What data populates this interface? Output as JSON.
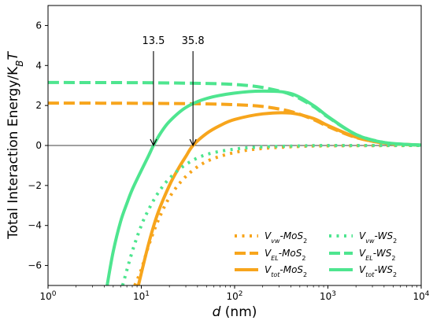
{
  "chart_data": {
    "type": "line",
    "xscale": "log",
    "xlim": [
      1,
      10000
    ],
    "ylim": [
      -7,
      7
    ],
    "xlabel_parts": [
      "d",
      " (nm)"
    ],
    "ylabel_parts": [
      "Total Interaction Energy/K",
      "B",
      "T"
    ],
    "x_ticks": [
      {
        "base": "10",
        "exp": "0",
        "value": 1
      },
      {
        "base": "10",
        "exp": "1",
        "value": 10
      },
      {
        "base": "10",
        "exp": "2",
        "value": 100
      },
      {
        "base": "10",
        "exp": "3",
        "value": 1000
      },
      {
        "base": "10",
        "exp": "4",
        "value": 10000
      }
    ],
    "y_ticks": [
      -6,
      -4,
      -2,
      0,
      2,
      4,
      6
    ],
    "y_tick_labels": [
      "−6",
      "−4",
      "−2",
      "0",
      "2",
      "4",
      "6"
    ],
    "zero_line": 0,
    "annotations": [
      {
        "text": "13.5",
        "x": 13.5,
        "y": 0
      },
      {
        "text": "35.8",
        "x": 35.8,
        "y": 0
      }
    ],
    "legend_position": "lower-right",
    "colors": {
      "MoS2": "#f7a51c",
      "WS2": "#4ee58f"
    },
    "series": [
      {
        "name_parts": [
          "V",
          "vw",
          "-MoS",
          "2"
        ],
        "material": "MoS2",
        "style": "dotted",
        "x": [
          8.5,
          10,
          12,
          15,
          20,
          30,
          50,
          100,
          200,
          500,
          1000,
          10000
        ],
        "y": [
          -7,
          -6.2,
          -5.0,
          -3.8,
          -2.6,
          -1.55,
          -0.8,
          -0.35,
          -0.15,
          -0.05,
          -0.02,
          0
        ]
      },
      {
        "name_parts": [
          "V",
          "EL",
          "-MoS",
          "2"
        ],
        "material": "MoS2",
        "style": "dashed",
        "x": [
          1,
          10,
          50,
          100,
          200,
          400,
          700,
          1000,
          2000,
          4000,
          7000,
          10000
        ],
        "y": [
          2.12,
          2.11,
          2.08,
          2.04,
          1.95,
          1.7,
          1.3,
          0.95,
          0.4,
          0.12,
          0.05,
          0.02
        ]
      },
      {
        "name_parts": [
          "V",
          "tot",
          "-MoS",
          "2"
        ],
        "material": "MoS2",
        "style": "solid",
        "x": [
          9.3,
          12,
          15,
          20,
          25,
          30,
          35.8,
          50,
          70,
          100,
          200,
          400,
          700,
          1000,
          2000,
          4000,
          10000
        ],
        "y": [
          -7,
          -4.9,
          -3.4,
          -2.0,
          -1.15,
          -0.55,
          0,
          0.6,
          1.0,
          1.3,
          1.58,
          1.62,
          1.35,
          1.0,
          0.42,
          0.12,
          0.02
        ]
      },
      {
        "name_parts": [
          "V",
          "vw",
          "-WS",
          "2"
        ],
        "material": "WS2",
        "style": "dotted",
        "x": [
          6.3,
          8,
          10,
          12,
          15,
          20,
          30,
          50,
          100,
          200,
          500,
          1000,
          10000
        ],
        "y": [
          -7,
          -5.3,
          -4.0,
          -3.2,
          -2.4,
          -1.65,
          -0.95,
          -0.45,
          -0.18,
          -0.07,
          -0.02,
          0,
          0
        ]
      },
      {
        "name_parts": [
          "V",
          "EL",
          "-WS",
          "2"
        ],
        "material": "WS2",
        "style": "dashed",
        "x": [
          1,
          10,
          50,
          100,
          200,
          400,
          700,
          1000,
          2000,
          4000,
          7000,
          10000
        ],
        "y": [
          3.15,
          3.14,
          3.1,
          3.05,
          2.9,
          2.55,
          1.95,
          1.42,
          0.55,
          0.15,
          0.05,
          0.02
        ]
      },
      {
        "name_parts": [
          "V",
          "tot",
          "-WS",
          "2"
        ],
        "material": "WS2",
        "style": "solid",
        "x": [
          4.3,
          5,
          6,
          7,
          8,
          10,
          12,
          13.5,
          16,
          20,
          30,
          50,
          100,
          200,
          400,
          700,
          1000,
          2000,
          4000,
          10000
        ],
        "y": [
          -7,
          -5.3,
          -3.8,
          -2.9,
          -2.2,
          -1.25,
          -0.5,
          0,
          0.6,
          1.2,
          1.9,
          2.35,
          2.62,
          2.72,
          2.6,
          2.0,
          1.45,
          0.55,
          0.15,
          0.02
        ]
      }
    ]
  }
}
